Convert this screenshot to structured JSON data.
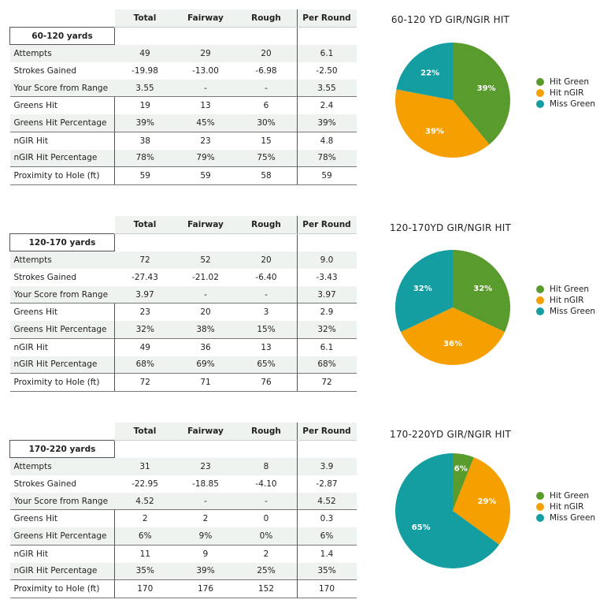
{
  "colors": {
    "hit_green": "#5a9b2e",
    "hit_ngir": "#f5a000",
    "miss_green": "#149ea1",
    "header_bg": "#eef3ef"
  },
  "headers": [
    "Total",
    "Fairway",
    "Rough",
    "Per Round"
  ],
  "sections": [
    {
      "range_label": "60-120 yards",
      "rows": [
        {
          "label": "Attempts",
          "total": "49",
          "fairway": "29",
          "rough": "20",
          "per_round": "6.1"
        },
        {
          "label": "Strokes Gained",
          "total": "-19.98",
          "fairway": "-13.00",
          "rough": "-6.98",
          "per_round": "-2.50"
        },
        {
          "label": "Your Score from Range",
          "total": "3.55",
          "fairway": "-",
          "rough": "-",
          "per_round": "3.55"
        },
        {
          "label": "Greens Hit",
          "total": "19",
          "fairway": "13",
          "rough": "6",
          "per_round": "2.4"
        },
        {
          "label": "Greens Hit Percentage",
          "total": "39%",
          "fairway": "45%",
          "rough": "30%",
          "per_round": "39%"
        },
        {
          "label": "nGIR Hit",
          "total": "38",
          "fairway": "23",
          "rough": "15",
          "per_round": "4.8"
        },
        {
          "label": "nGIR Hit Percentage",
          "total": "78%",
          "fairway": "79%",
          "rough": "75%",
          "per_round": "78%"
        },
        {
          "label": "Proximity to Hole (ft)",
          "total": "59",
          "fairway": "59",
          "rough": "58",
          "per_round": "59"
        }
      ]
    },
    {
      "range_label": "120-170 yards",
      "rows": [
        {
          "label": "Attempts",
          "total": "72",
          "fairway": "52",
          "rough": "20",
          "per_round": "9.0"
        },
        {
          "label": "Strokes Gained",
          "total": "-27.43",
          "fairway": "-21.02",
          "rough": "-6.40",
          "per_round": "-3.43"
        },
        {
          "label": "Your Score from Range",
          "total": "3.97",
          "fairway": "-",
          "rough": "-",
          "per_round": "3.97"
        },
        {
          "label": "Greens Hit",
          "total": "23",
          "fairway": "20",
          "rough": "3",
          "per_round": "2.9"
        },
        {
          "label": "Greens Hit Percentage",
          "total": "32%",
          "fairway": "38%",
          "rough": "15%",
          "per_round": "32%"
        },
        {
          "label": "nGIR Hit",
          "total": "49",
          "fairway": "36",
          "rough": "13",
          "per_round": "6.1"
        },
        {
          "label": "nGIR Hit Percentage",
          "total": "68%",
          "fairway": "69%",
          "rough": "65%",
          "per_round": "68%"
        },
        {
          "label": "Proximity to Hole (ft)",
          "total": "72",
          "fairway": "71",
          "rough": "76",
          "per_round": "72"
        }
      ]
    },
    {
      "range_label": "170-220 yards",
      "rows": [
        {
          "label": "Attempts",
          "total": "31",
          "fairway": "23",
          "rough": "8",
          "per_round": "3.9"
        },
        {
          "label": "Strokes Gained",
          "total": "-22.95",
          "fairway": "-18.85",
          "rough": "-4.10",
          "per_round": "-2.87"
        },
        {
          "label": "Your Score from Range",
          "total": "4.52",
          "fairway": "-",
          "rough": "-",
          "per_round": "4.52"
        },
        {
          "label": "Greens Hit",
          "total": "2",
          "fairway": "2",
          "rough": "0",
          "per_round": "0.3"
        },
        {
          "label": "Greens Hit Percentage",
          "total": "6%",
          "fairway": "9%",
          "rough": "0%",
          "per_round": "6%"
        },
        {
          "label": "nGIR Hit",
          "total": "11",
          "fairway": "9",
          "rough": "2",
          "per_round": "1.4"
        },
        {
          "label": "nGIR Hit Percentage",
          "total": "35%",
          "fairway": "39%",
          "rough": "25%",
          "per_round": "35%"
        },
        {
          "label": "Proximity to Hole (ft)",
          "total": "170",
          "fairway": "176",
          "rough": "152",
          "per_round": "170"
        }
      ]
    }
  ],
  "chart_data": [
    {
      "type": "pie",
      "title": "60-120 YD GIR/NGIR HIT",
      "labels": [
        "Hit Green",
        "Hit nGIR",
        "Miss Green"
      ],
      "values": [
        39,
        39,
        22
      ],
      "value_labels": [
        "39%",
        "39%",
        "22%"
      ],
      "legend_position": "right"
    },
    {
      "type": "pie",
      "title": "120-170YD GIR/NGIR HIT",
      "labels": [
        "Hit Green",
        "Hit nGIR",
        "Miss Green"
      ],
      "values": [
        32,
        36,
        32
      ],
      "value_labels": [
        "32%",
        "36%",
        "32%"
      ],
      "legend_position": "right"
    },
    {
      "type": "pie",
      "title": "170-220YD GIR/NGIR HIT",
      "labels": [
        "Hit Green",
        "Hit nGIR",
        "Miss Green"
      ],
      "values": [
        6,
        29,
        65
      ],
      "value_labels": [
        "6%",
        "29%",
        "65%"
      ],
      "legend_position": "right"
    }
  ]
}
